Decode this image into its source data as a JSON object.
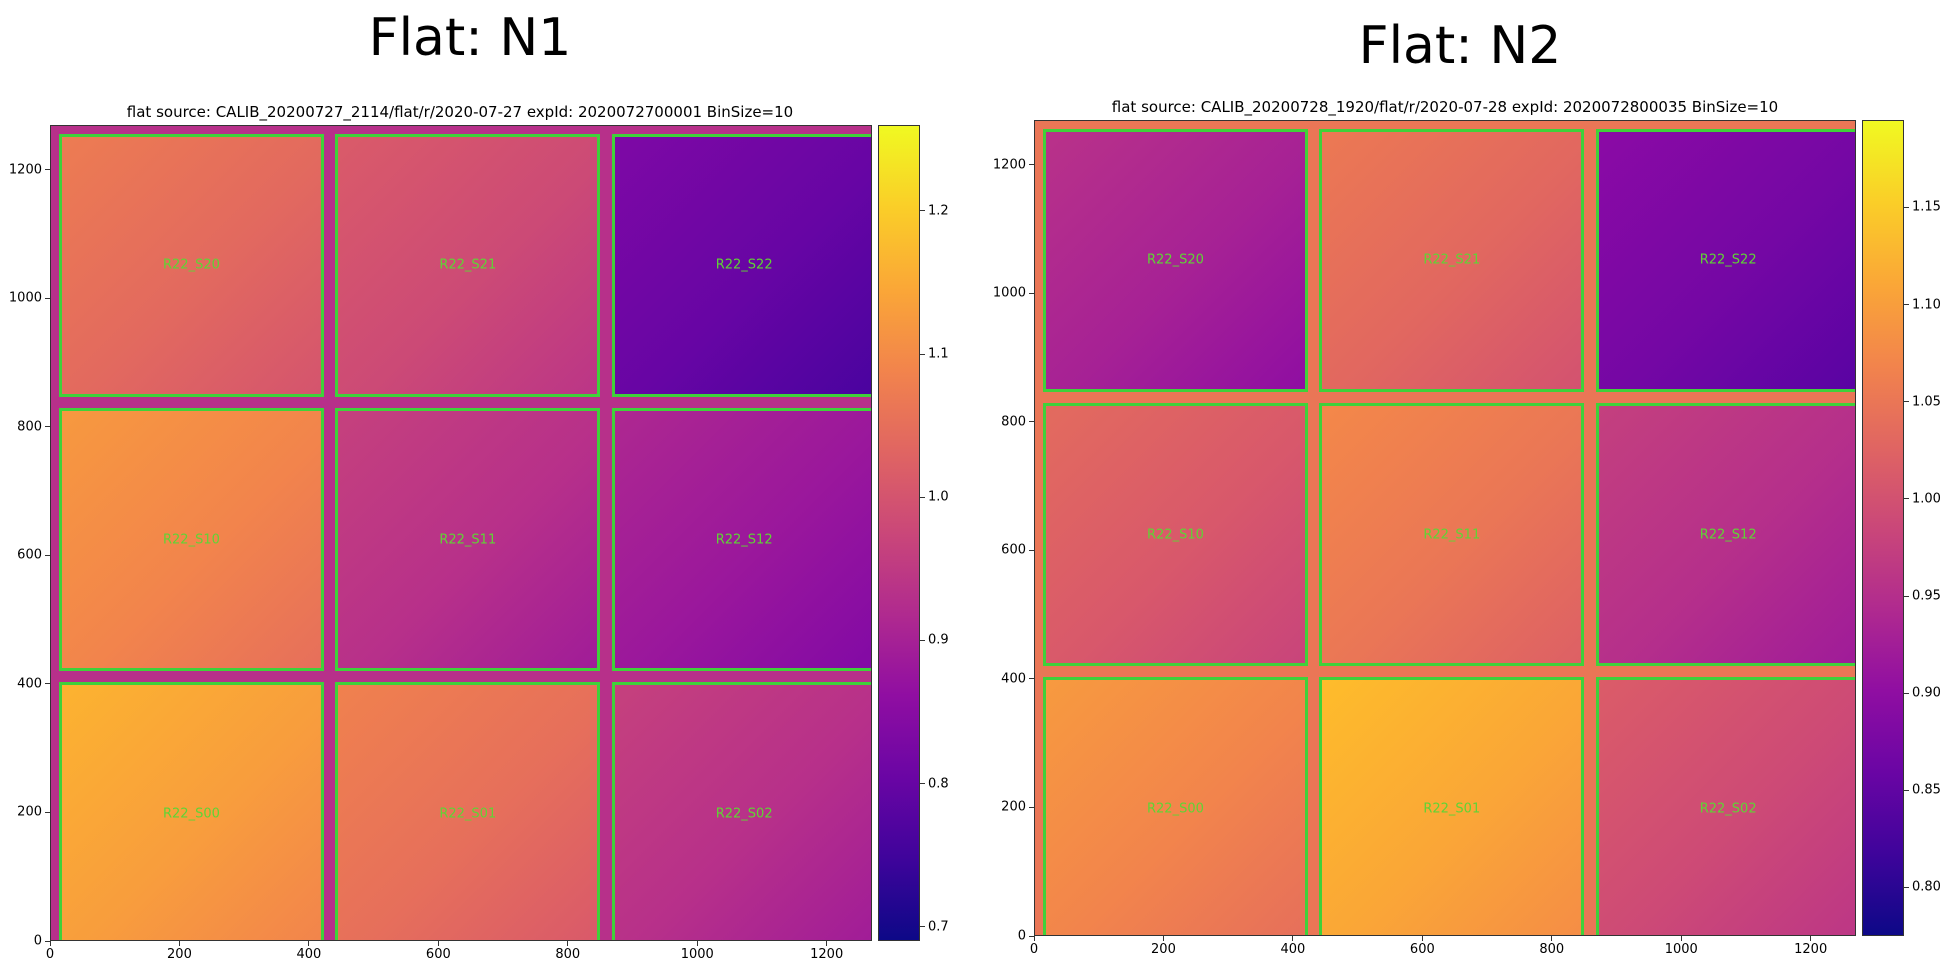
{
  "figures": [
    {
      "heading": "Flat: N1"
    },
    {
      "heading": "Flat: N2"
    }
  ],
  "chart_data": [
    {
      "type": "heatmap",
      "title": "flat source: CALIB_20200727_2114/flat/r/2020-07-27  expId: 2020072700001  BinSize=10",
      "xlabel": "",
      "ylabel": "",
      "xlim": [
        0,
        1270
      ],
      "ylim": [
        0,
        1270
      ],
      "xticks": [
        0,
        200,
        400,
        600,
        800,
        1000,
        1200
      ],
      "yticks": [
        0,
        200,
        400,
        600,
        800,
        1000,
        1200
      ],
      "colormap": "plasma",
      "colorbar": {
        "min": 0.69,
        "max": 1.26,
        "ticks": [
          0.7,
          0.8,
          0.9,
          1.0,
          1.1,
          1.2
        ],
        "tick_labels": [
          "0.7",
          "0.8",
          "0.9",
          "1.0",
          "1.1",
          "1.2"
        ]
      },
      "grid": false,
      "ccds": [
        {
          "name": "R22_S20",
          "row": 0,
          "col": 0,
          "value": 1.04
        },
        {
          "name": "R22_S21",
          "row": 0,
          "col": 1,
          "value": 0.98
        },
        {
          "name": "R22_S22",
          "row": 0,
          "col": 2,
          "value": 0.8
        },
        {
          "name": "R22_S10",
          "row": 1,
          "col": 0,
          "value": 1.09
        },
        {
          "name": "R22_S11",
          "row": 1,
          "col": 1,
          "value": 0.93
        },
        {
          "name": "R22_S12",
          "row": 1,
          "col": 2,
          "value": 0.88
        },
        {
          "name": "R22_S00",
          "row": 2,
          "col": 0,
          "value": 1.13
        },
        {
          "name": "R22_S01",
          "row": 2,
          "col": 1,
          "value": 1.05
        },
        {
          "name": "R22_S02",
          "row": 2,
          "col": 2,
          "value": 0.93
        }
      ]
    },
    {
      "type": "heatmap",
      "title": "flat source: CALIB_20200728_1920/flat/r/2020-07-28  expId: 2020072800035  BinSize=10",
      "xlabel": "",
      "ylabel": "",
      "xlim": [
        0,
        1270
      ],
      "ylim": [
        0,
        1270
      ],
      "xticks": [
        0,
        200,
        400,
        600,
        800,
        1000,
        1200
      ],
      "yticks": [
        0,
        200,
        400,
        600,
        800,
        1000,
        1200
      ],
      "colormap": "plasma",
      "colorbar": {
        "min": 0.775,
        "max": 1.195,
        "ticks": [
          0.8,
          0.85,
          0.9,
          0.95,
          1.0,
          1.05,
          1.1,
          1.15
        ],
        "tick_labels": [
          "0.80",
          "0.85",
          "0.90",
          "0.95",
          "1.00",
          "1.05",
          "1.10",
          "1.15"
        ]
      },
      "grid": false,
      "ccds": [
        {
          "name": "R22_S20",
          "row": 0,
          "col": 0,
          "value": 0.93
        },
        {
          "name": "R22_S21",
          "row": 0,
          "col": 1,
          "value": 1.03
        },
        {
          "name": "R22_S22",
          "row": 0,
          "col": 2,
          "value": 0.87
        },
        {
          "name": "R22_S10",
          "row": 1,
          "col": 0,
          "value": 1.01
        },
        {
          "name": "R22_S11",
          "row": 1,
          "col": 1,
          "value": 1.05
        },
        {
          "name": "R22_S12",
          "row": 1,
          "col": 2,
          "value": 0.95
        },
        {
          "name": "R22_S00",
          "row": 2,
          "col": 0,
          "value": 1.07
        },
        {
          "name": "R22_S01",
          "row": 2,
          "col": 1,
          "value": 1.11
        },
        {
          "name": "R22_S02",
          "row": 2,
          "col": 2,
          "value": 0.99
        }
      ]
    }
  ]
}
